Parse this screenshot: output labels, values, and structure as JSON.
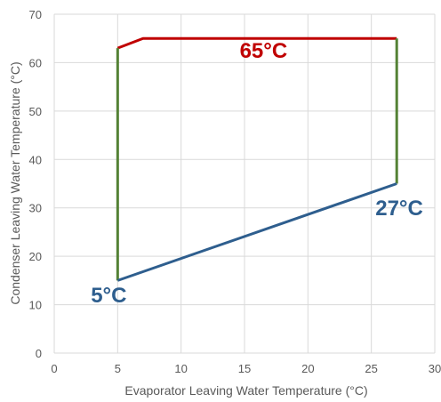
{
  "chart_data": {
    "type": "line",
    "title": "",
    "xlabel": "Evaporator Leaving Water Temperature (°C)",
    "ylabel": "Condenser Leaving Water Temperature (°C)",
    "xlim": [
      0,
      30
    ],
    "ylim": [
      0,
      70
    ],
    "xticks": [
      0,
      5,
      10,
      15,
      20,
      25,
      30
    ],
    "yticks": [
      0,
      10,
      20,
      30,
      40,
      50,
      60,
      70
    ],
    "grid": true,
    "legend": "none",
    "series": [
      {
        "color": "#c00000",
        "points": [
          [
            5,
            63
          ],
          [
            7,
            65
          ],
          [
            27,
            65
          ]
        ]
      },
      {
        "color": "#548235",
        "points": [
          [
            5,
            15
          ],
          [
            5,
            63
          ]
        ]
      },
      {
        "color": "#548235",
        "points": [
          [
            27,
            35
          ],
          [
            27,
            65
          ]
        ]
      },
      {
        "color": "#2e5e8e",
        "points": [
          [
            5,
            15
          ],
          [
            27,
            35
          ]
        ]
      }
    ],
    "annotations": [
      {
        "text": "65°C",
        "x": 16.5,
        "y": 61,
        "color": "#c00000"
      },
      {
        "text": "27°C",
        "x": 27.2,
        "y": 28.5,
        "color": "#2e5e8e"
      },
      {
        "text": "5°C",
        "x": 4.3,
        "y": 10.5,
        "color": "#2e5e8e"
      }
    ]
  }
}
